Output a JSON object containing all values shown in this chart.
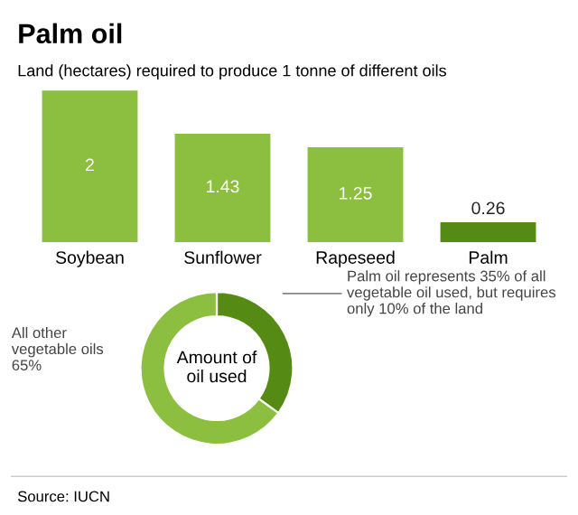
{
  "chart_data": [
    {
      "type": "bar",
      "title": "Palm oil",
      "subtitle": "Land (hectares) required to produce 1 tonne of different oils",
      "categories": [
        "Soybean",
        "Sunflower",
        "Rapeseed",
        "Palm"
      ],
      "values": [
        2,
        1.43,
        1.25,
        0.26
      ],
      "colors": [
        "#8cbf3f",
        "#8cbf3f",
        "#8cbf3f",
        "#558b14"
      ],
      "data_labels": true,
      "annotations": [
        "Source: IUCN"
      ]
    },
    {
      "type": "donut",
      "title": "Amount of oil used",
      "categories": [
        null,
        "All other vegetable oils"
      ],
      "values": [
        35,
        65
      ],
      "colors": [
        "#558b14",
        "#8cbf3f"
      ],
      "value_labels": [
        null,
        "65%"
      ],
      "annotations": [
        "Palm oil represents 35% of all vegetable oil used, but requires only 10% of the land"
      ]
    }
  ]
}
